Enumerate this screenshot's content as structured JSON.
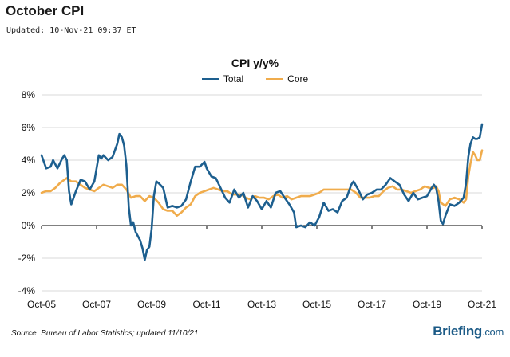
{
  "header": {
    "title": "October CPI",
    "updated": "Updated: 10-Nov-21 09:37 ET"
  },
  "footer": {
    "source": "Source: Bureau of Labor Statistics; updated 11/10/21",
    "brand": "Briefing",
    "brand_suffix": ".com"
  },
  "colors": {
    "total": "#1d5f8f",
    "core": "#f0ac4c",
    "negative_label": "#d31f1f",
    "grid": "#d9d9d9",
    "axis": "#000000"
  },
  "chart_data": {
    "type": "line",
    "title": "CPI y/y%",
    "xlabel": "",
    "ylabel": "",
    "ylim": [
      -4,
      8
    ],
    "yticks": [
      8,
      6,
      4,
      2,
      0,
      -2,
      -4
    ],
    "ytick_labels": [
      "8%",
      "6%",
      "4%",
      "2%",
      "0%",
      "-2%",
      "-4%"
    ],
    "xlim": [
      2005.75,
      2021.75
    ],
    "xticks": [
      2005.75,
      2007.75,
      2009.75,
      2011.75,
      2013.75,
      2015.75,
      2017.75,
      2019.75,
      2021.75
    ],
    "xtick_labels": [
      "Oct-05",
      "Oct-07",
      "Oct-09",
      "Oct-11",
      "Oct-13",
      "Oct-15",
      "Oct-17",
      "Oct-19",
      "Oct-21"
    ],
    "grid": true,
    "legend_position": "top-center",
    "series": [
      {
        "name": "Total",
        "points": [
          [
            2005.75,
            4.3
          ],
          [
            2005.92,
            3.5
          ],
          [
            2006.08,
            3.6
          ],
          [
            2006.17,
            4.0
          ],
          [
            2006.33,
            3.5
          ],
          [
            2006.5,
            4.1
          ],
          [
            2006.58,
            4.3
          ],
          [
            2006.67,
            4.0
          ],
          [
            2006.75,
            2.1
          ],
          [
            2006.83,
            1.3
          ],
          [
            2007.0,
            2.1
          ],
          [
            2007.17,
            2.8
          ],
          [
            2007.33,
            2.7
          ],
          [
            2007.5,
            2.2
          ],
          [
            2007.67,
            2.7
          ],
          [
            2007.75,
            3.5
          ],
          [
            2007.83,
            4.3
          ],
          [
            2007.92,
            4.1
          ],
          [
            2008.0,
            4.3
          ],
          [
            2008.17,
            4.0
          ],
          [
            2008.33,
            4.2
          ],
          [
            2008.5,
            5.0
          ],
          [
            2008.58,
            5.6
          ],
          [
            2008.67,
            5.4
          ],
          [
            2008.75,
            4.9
          ],
          [
            2008.83,
            3.7
          ],
          [
            2008.92,
            1.1
          ],
          [
            2009.0,
            0.0
          ],
          [
            2009.08,
            0.2
          ],
          [
            2009.17,
            -0.4
          ],
          [
            2009.33,
            -0.9
          ],
          [
            2009.42,
            -1.4
          ],
          [
            2009.5,
            -2.1
          ],
          [
            2009.58,
            -1.5
          ],
          [
            2009.67,
            -1.3
          ],
          [
            2009.75,
            -0.2
          ],
          [
            2009.83,
            1.8
          ],
          [
            2009.92,
            2.7
          ],
          [
            2010.0,
            2.6
          ],
          [
            2010.17,
            2.3
          ],
          [
            2010.33,
            1.1
          ],
          [
            2010.5,
            1.2
          ],
          [
            2010.67,
            1.1
          ],
          [
            2010.83,
            1.2
          ],
          [
            2011.0,
            1.6
          ],
          [
            2011.17,
            2.7
          ],
          [
            2011.33,
            3.6
          ],
          [
            2011.5,
            3.6
          ],
          [
            2011.67,
            3.9
          ],
          [
            2011.75,
            3.5
          ],
          [
            2011.92,
            3.0
          ],
          [
            2012.08,
            2.9
          ],
          [
            2012.25,
            2.3
          ],
          [
            2012.42,
            1.7
          ],
          [
            2012.58,
            1.4
          ],
          [
            2012.75,
            2.2
          ],
          [
            2012.92,
            1.7
          ],
          [
            2013.08,
            2.0
          ],
          [
            2013.25,
            1.1
          ],
          [
            2013.42,
            1.8
          ],
          [
            2013.58,
            1.5
          ],
          [
            2013.75,
            1.0
          ],
          [
            2013.92,
            1.5
          ],
          [
            2014.08,
            1.1
          ],
          [
            2014.25,
            2.0
          ],
          [
            2014.42,
            2.1
          ],
          [
            2014.58,
            1.7
          ],
          [
            2014.75,
            1.3
          ],
          [
            2014.92,
            0.8
          ],
          [
            2015.0,
            -0.1
          ],
          [
            2015.17,
            0.0
          ],
          [
            2015.33,
            -0.1
          ],
          [
            2015.5,
            0.2
          ],
          [
            2015.67,
            0.0
          ],
          [
            2015.83,
            0.5
          ],
          [
            2016.0,
            1.4
          ],
          [
            2016.17,
            0.9
          ],
          [
            2016.33,
            1.0
          ],
          [
            2016.5,
            0.8
          ],
          [
            2016.67,
            1.5
          ],
          [
            2016.83,
            1.7
          ],
          [
            2017.0,
            2.5
          ],
          [
            2017.08,
            2.7
          ],
          [
            2017.25,
            2.2
          ],
          [
            2017.42,
            1.6
          ],
          [
            2017.58,
            1.9
          ],
          [
            2017.75,
            2.0
          ],
          [
            2017.92,
            2.2
          ],
          [
            2018.08,
            2.2
          ],
          [
            2018.25,
            2.5
          ],
          [
            2018.42,
            2.9
          ],
          [
            2018.58,
            2.7
          ],
          [
            2018.75,
            2.5
          ],
          [
            2018.92,
            1.9
          ],
          [
            2019.08,
            1.5
          ],
          [
            2019.25,
            2.0
          ],
          [
            2019.42,
            1.6
          ],
          [
            2019.58,
            1.7
          ],
          [
            2019.75,
            1.8
          ],
          [
            2019.92,
            2.3
          ],
          [
            2020.0,
            2.5
          ],
          [
            2020.08,
            2.3
          ],
          [
            2020.17,
            1.5
          ],
          [
            2020.25,
            0.3
          ],
          [
            2020.33,
            0.1
          ],
          [
            2020.42,
            0.6
          ],
          [
            2020.58,
            1.3
          ],
          [
            2020.75,
            1.2
          ],
          [
            2020.92,
            1.4
          ],
          [
            2021.08,
            1.7
          ],
          [
            2021.17,
            2.6
          ],
          [
            2021.25,
            4.2
          ],
          [
            2021.33,
            5.0
          ],
          [
            2021.42,
            5.4
          ],
          [
            2021.5,
            5.3
          ],
          [
            2021.58,
            5.3
          ],
          [
            2021.67,
            5.4
          ],
          [
            2021.75,
            6.2
          ]
        ]
      },
      {
        "name": "Core",
        "points": [
          [
            2005.75,
            2.0
          ],
          [
            2005.92,
            2.1
          ],
          [
            2006.08,
            2.1
          ],
          [
            2006.25,
            2.3
          ],
          [
            2006.42,
            2.6
          ],
          [
            2006.58,
            2.8
          ],
          [
            2006.67,
            2.9
          ],
          [
            2006.83,
            2.7
          ],
          [
            2007.0,
            2.7
          ],
          [
            2007.17,
            2.5
          ],
          [
            2007.33,
            2.3
          ],
          [
            2007.5,
            2.2
          ],
          [
            2007.67,
            2.1
          ],
          [
            2007.83,
            2.3
          ],
          [
            2008.0,
            2.5
          ],
          [
            2008.17,
            2.4
          ],
          [
            2008.33,
            2.3
          ],
          [
            2008.5,
            2.5
          ],
          [
            2008.67,
            2.5
          ],
          [
            2008.83,
            2.2
          ],
          [
            2009.0,
            1.7
          ],
          [
            2009.17,
            1.8
          ],
          [
            2009.33,
            1.8
          ],
          [
            2009.5,
            1.5
          ],
          [
            2009.67,
            1.8
          ],
          [
            2009.83,
            1.7
          ],
          [
            2010.0,
            1.4
          ],
          [
            2010.17,
            1.0
          ],
          [
            2010.33,
            0.9
          ],
          [
            2010.5,
            0.9
          ],
          [
            2010.67,
            0.6
          ],
          [
            2010.83,
            0.8
          ],
          [
            2011.0,
            1.1
          ],
          [
            2011.17,
            1.3
          ],
          [
            2011.33,
            1.8
          ],
          [
            2011.5,
            2.0
          ],
          [
            2011.67,
            2.1
          ],
          [
            2011.83,
            2.2
          ],
          [
            2012.0,
            2.3
          ],
          [
            2012.17,
            2.2
          ],
          [
            2012.33,
            2.1
          ],
          [
            2012.5,
            2.1
          ],
          [
            2012.67,
            1.9
          ],
          [
            2012.83,
            1.9
          ],
          [
            2013.0,
            1.9
          ],
          [
            2013.17,
            1.7
          ],
          [
            2013.33,
            1.6
          ],
          [
            2013.5,
            1.8
          ],
          [
            2013.67,
            1.7
          ],
          [
            2013.83,
            1.7
          ],
          [
            2014.0,
            1.6
          ],
          [
            2014.17,
            1.8
          ],
          [
            2014.33,
            1.9
          ],
          [
            2014.5,
            1.7
          ],
          [
            2014.67,
            1.8
          ],
          [
            2014.83,
            1.6
          ],
          [
            2015.0,
            1.7
          ],
          [
            2015.17,
            1.8
          ],
          [
            2015.33,
            1.8
          ],
          [
            2015.5,
            1.8
          ],
          [
            2015.67,
            1.9
          ],
          [
            2015.83,
            2.0
          ],
          [
            2016.0,
            2.2
          ],
          [
            2016.17,
            2.2
          ],
          [
            2016.33,
            2.2
          ],
          [
            2016.5,
            2.2
          ],
          [
            2016.67,
            2.2
          ],
          [
            2016.83,
            2.2
          ],
          [
            2017.0,
            2.2
          ],
          [
            2017.17,
            2.0
          ],
          [
            2017.33,
            1.7
          ],
          [
            2017.5,
            1.7
          ],
          [
            2017.67,
            1.7
          ],
          [
            2017.83,
            1.8
          ],
          [
            2018.0,
            1.8
          ],
          [
            2018.17,
            2.1
          ],
          [
            2018.33,
            2.3
          ],
          [
            2018.5,
            2.4
          ],
          [
            2018.67,
            2.2
          ],
          [
            2018.83,
            2.2
          ],
          [
            2019.0,
            2.1
          ],
          [
            2019.17,
            2.0
          ],
          [
            2019.33,
            2.1
          ],
          [
            2019.5,
            2.2
          ],
          [
            2019.67,
            2.4
          ],
          [
            2019.83,
            2.3
          ],
          [
            2020.0,
            2.3
          ],
          [
            2020.08,
            2.4
          ],
          [
            2020.17,
            2.1
          ],
          [
            2020.25,
            1.4
          ],
          [
            2020.42,
            1.2
          ],
          [
            2020.58,
            1.6
          ],
          [
            2020.75,
            1.7
          ],
          [
            2020.92,
            1.6
          ],
          [
            2021.08,
            1.4
          ],
          [
            2021.17,
            1.6
          ],
          [
            2021.25,
            3.0
          ],
          [
            2021.33,
            3.8
          ],
          [
            2021.42,
            4.5
          ],
          [
            2021.5,
            4.3
          ],
          [
            2021.58,
            4.0
          ],
          [
            2021.67,
            4.0
          ],
          [
            2021.75,
            4.6
          ]
        ]
      }
    ]
  }
}
